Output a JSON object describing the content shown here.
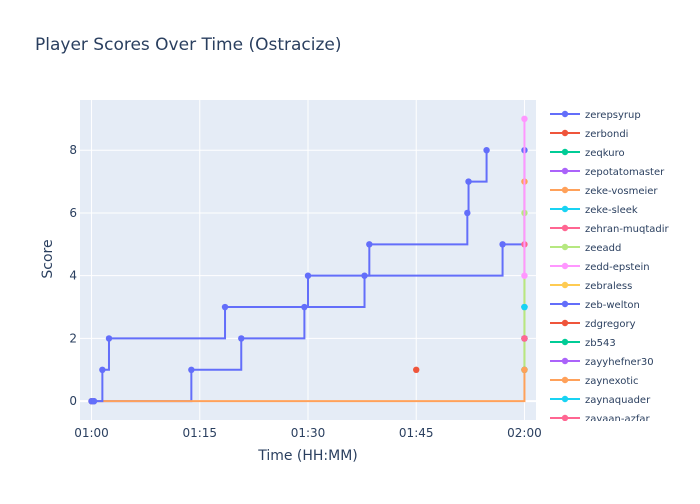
{
  "chart_data": {
    "type": "line",
    "line_shape": "step",
    "title": "Player Scores Over Time (Ostracize)",
    "xlabel": "Time (HH:MM)",
    "ylabel": "Score",
    "xlim": [
      "00:58:24",
      "02:01:36"
    ],
    "ylim": [
      -0.6,
      9.6
    ],
    "x_ticks": [
      {
        "value": "01:00:00",
        "label": "01:00"
      },
      {
        "value": "01:15:00",
        "label": "01:15"
      },
      {
        "value": "01:30:00",
        "label": "01:30"
      },
      {
        "value": "01:45:00",
        "label": "01:45"
      },
      {
        "value": "02:00:00",
        "label": "02:00"
      }
    ],
    "y_ticks": [
      0,
      2,
      4,
      6,
      8
    ],
    "grid": true,
    "plot_background": "#E5ECF6",
    "legend_position": "right",
    "series": [
      {
        "name": "zerepsyrup",
        "color": "#636EFA",
        "points": [
          {
            "x": "01:00:00",
            "y": 0
          },
          {
            "x": "01:13:50",
            "y": 1
          },
          {
            "x": "01:20:45",
            "y": 2
          },
          {
            "x": "01:29:30",
            "y": 3
          },
          {
            "x": "01:37:50",
            "y": 4
          },
          {
            "x": "01:56:58",
            "y": 5
          },
          {
            "x": "02:00:00",
            "y": 8
          }
        ]
      },
      {
        "name": "zerbondi",
        "color": "#EF553B",
        "points": [
          {
            "x": "01:45:00",
            "y": 1
          }
        ]
      },
      {
        "name": "zeqkuro",
        "color": "#00CC96",
        "points": [
          {
            "x": "02:00:00",
            "y": 2
          }
        ]
      },
      {
        "name": "zepotatomaster",
        "color": "#AB63FA",
        "points": [
          {
            "x": "02:00:00",
            "y": 3
          }
        ]
      },
      {
        "name": "zeke-vosmeier",
        "color": "#FFA15A",
        "points": [
          {
            "x": "01:00:00",
            "y": 0
          },
          {
            "x": "02:00:00",
            "y": 7
          }
        ]
      },
      {
        "name": "zeke-sleek",
        "color": "#19D3F3",
        "points": [
          {
            "x": "02:00:00",
            "y": 3
          }
        ]
      },
      {
        "name": "zehran-muqtadir",
        "color": "#FF6692",
        "points": [
          {
            "x": "02:00:00",
            "y": 5
          }
        ]
      },
      {
        "name": "zeeadd",
        "color": "#B6E880",
        "points": [
          {
            "x": "02:00:00",
            "y": 1
          },
          {
            "x": "02:00:00",
            "y": 6
          }
        ]
      },
      {
        "name": "zedd-epstein",
        "color": "#FF97FF",
        "points": [
          {
            "x": "02:00:00",
            "y": 4
          },
          {
            "x": "02:00:00",
            "y": 9
          }
        ]
      },
      {
        "name": "zebraless",
        "color": "#FECB52",
        "points": [
          {
            "x": "02:00:00",
            "y": 1
          }
        ]
      },
      {
        "name": "zeb-welton",
        "color": "#636EFA",
        "points": [
          {
            "x": "01:00:00",
            "y": 0
          },
          {
            "x": "01:00:20",
            "y": 0
          },
          {
            "x": "01:00:20",
            "y": 0
          },
          {
            "x": "01:01:30",
            "y": 1
          },
          {
            "x": "01:02:25",
            "y": 2
          },
          {
            "x": "01:18:30",
            "y": 3
          },
          {
            "x": "01:30:00",
            "y": 4
          },
          {
            "x": "01:38:30",
            "y": 5
          },
          {
            "x": "01:52:05",
            "y": 6
          },
          {
            "x": "01:52:15",
            "y": 7
          },
          {
            "x": "01:54:45",
            "y": 8
          }
        ]
      },
      {
        "name": "zdgregory",
        "color": "#EF553B",
        "points": [
          {
            "x": "02:00:00",
            "y": 2
          }
        ]
      },
      {
        "name": "zb543",
        "color": "#00CC96",
        "points": [
          {
            "x": "02:00:00",
            "y": 1
          }
        ]
      },
      {
        "name": "zayyhefner30",
        "color": "#AB63FA",
        "points": [
          {
            "x": "02:00:00",
            "y": 2
          }
        ]
      },
      {
        "name": "zaynexotic",
        "color": "#FFA15A",
        "points": [
          {
            "x": "02:00:00",
            "y": 1
          }
        ]
      },
      {
        "name": "zaynaquader",
        "color": "#19D3F3",
        "points": [
          {
            "x": "02:00:00",
            "y": 3
          }
        ]
      },
      {
        "name": "zayaan-azfar",
        "color": "#FF6692",
        "points": [
          {
            "x": "02:00:00",
            "y": 2
          }
        ]
      }
    ]
  }
}
